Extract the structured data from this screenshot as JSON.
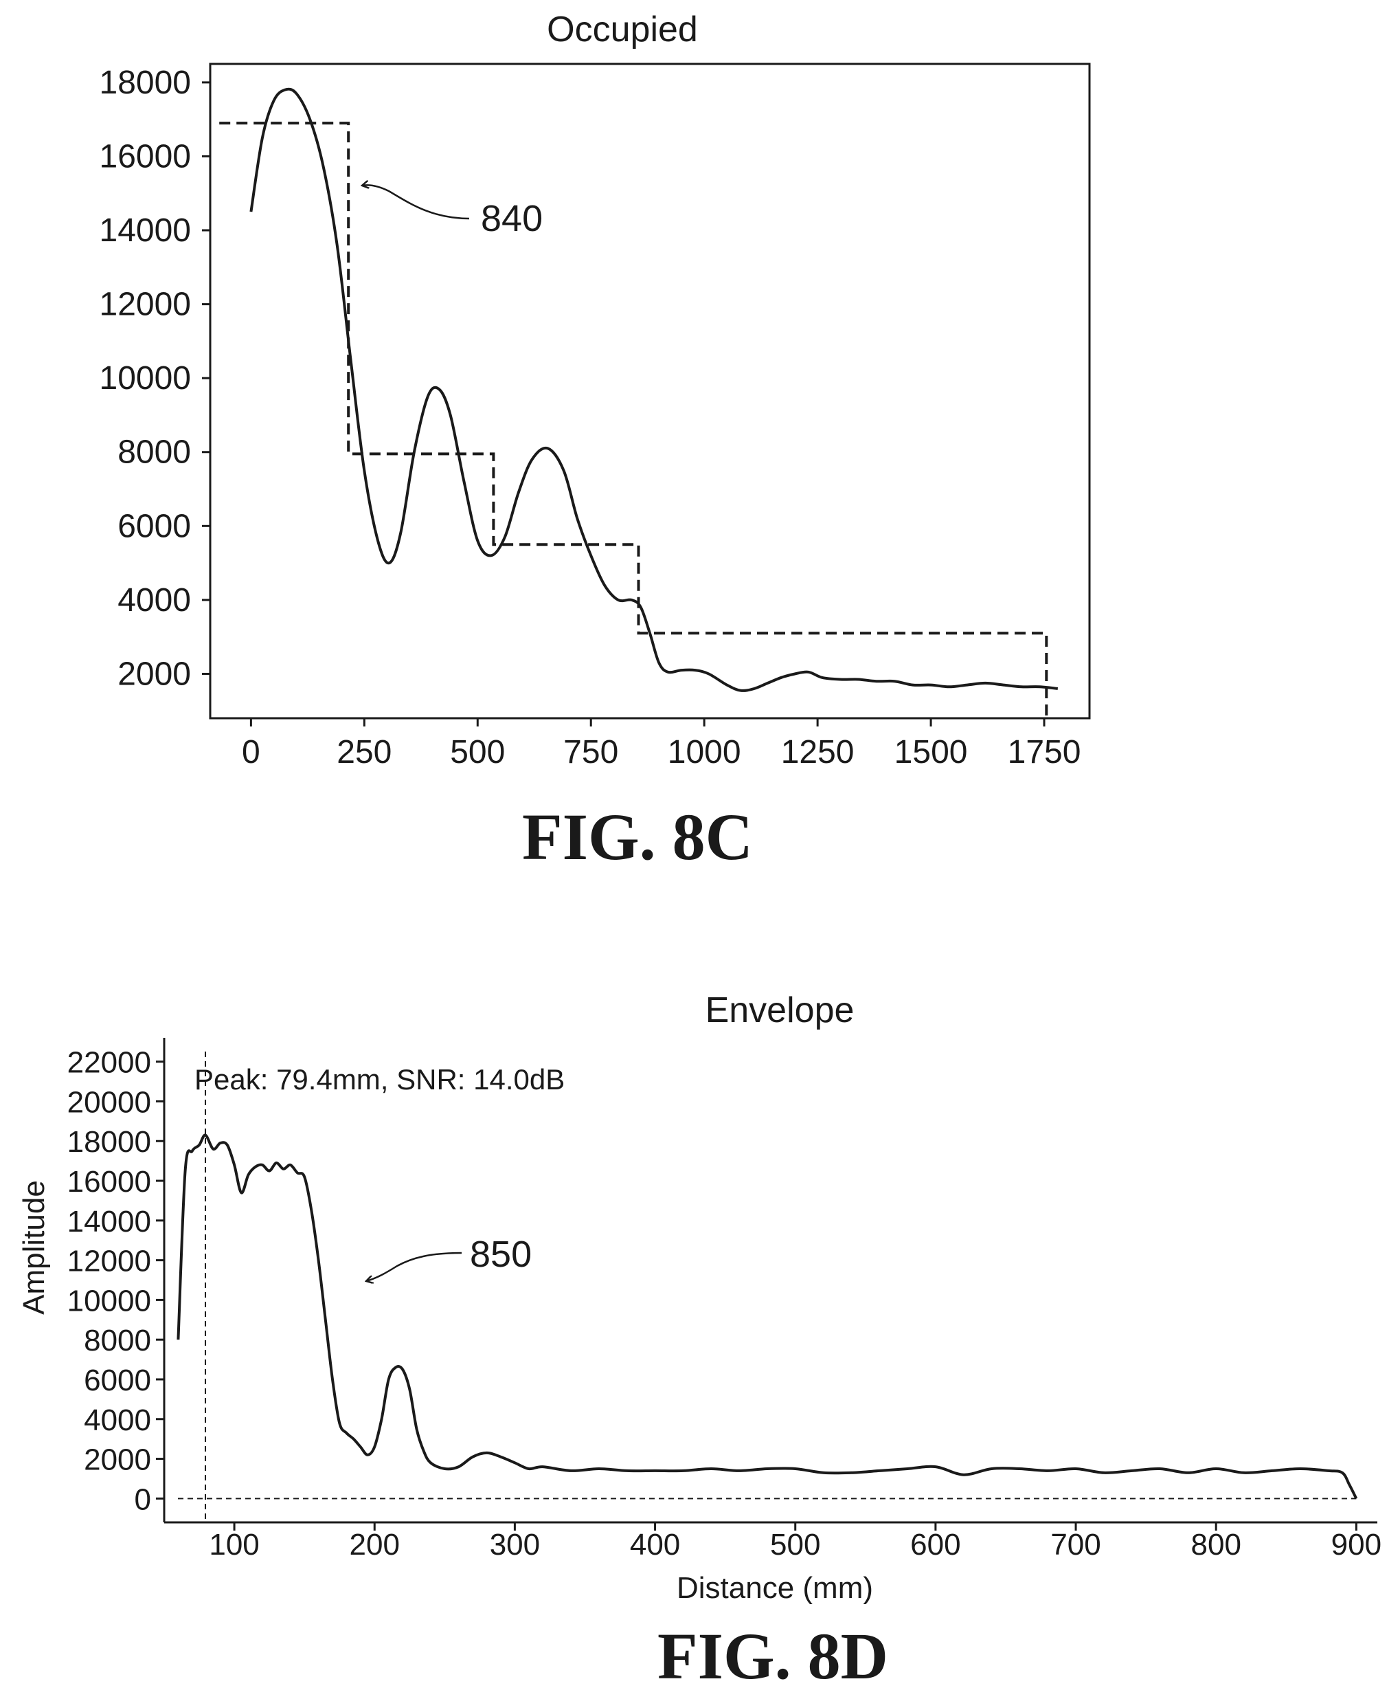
{
  "chart_data": [
    {
      "figure_label": "FIG. 8C",
      "type": "line",
      "title": "Occupied",
      "xlabel": "",
      "ylabel": "",
      "xlim": [
        -90,
        1850
      ],
      "ylim": [
        800,
        18500
      ],
      "x_ticks": [
        0,
        250,
        500,
        750,
        1000,
        1250,
        1500,
        1750
      ],
      "x_tick_labels": [
        "0",
        "250",
        "500",
        "750",
        "1000",
        "1250",
        "1500",
        "1750"
      ],
      "y_ticks": [
        2000,
        4000,
        6000,
        8000,
        10000,
        12000,
        14000,
        16000,
        18000
      ],
      "y_tick_labels": [
        "2000",
        "4000",
        "6000",
        "8000",
        "10000",
        "12000",
        "14000",
        "16000",
        "18000"
      ],
      "grid": false,
      "annotation": "840",
      "series": [
        {
          "style": "solid",
          "x": [
            0,
            25,
            50,
            75,
            100,
            130,
            160,
            190,
            220,
            250,
            280,
            305,
            330,
            360,
            390,
            415,
            440,
            470,
            500,
            530,
            560,
            590,
            620,
            655,
            690,
            720,
            750,
            780,
            810,
            840,
            860,
            880,
            900,
            920,
            950,
            980,
            1010,
            1050,
            1080,
            1110,
            1140,
            1170,
            1200,
            1230,
            1260,
            1300,
            1340,
            1380,
            1420,
            1460,
            1500,
            1540,
            1580,
            1620,
            1660,
            1700,
            1740,
            1780
          ],
          "y": [
            14500,
            16500,
            17500,
            17800,
            17700,
            17000,
            15700,
            13600,
            10500,
            7500,
            5600,
            5000,
            5800,
            8000,
            9500,
            9700,
            9000,
            7200,
            5600,
            5200,
            5700,
            6900,
            7800,
            8100,
            7500,
            6200,
            5200,
            4400,
            4000,
            4000,
            3800,
            3100,
            2300,
            2050,
            2100,
            2100,
            2000,
            1700,
            1550,
            1600,
            1750,
            1900,
            2000,
            2050,
            1900,
            1850,
            1850,
            1800,
            1800,
            1700,
            1700,
            1650,
            1700,
            1750,
            1700,
            1650,
            1650,
            1600
          ]
        },
        {
          "style": "dashed-step",
          "x": [
            -70,
            215,
            215,
            535,
            535,
            855,
            855,
            1755,
            1755
          ],
          "y": [
            16900,
            16900,
            7950,
            7950,
            5500,
            5500,
            3100,
            3100,
            800
          ]
        }
      ]
    },
    {
      "figure_label": "FIG. 8D",
      "type": "line",
      "title": "Envelope",
      "xlabel": "Distance (mm)",
      "ylabel": "Amplitude",
      "xlim": [
        50,
        915
      ],
      "ylim": [
        -1200,
        23200
      ],
      "x_ticks": [
        100,
        200,
        300,
        400,
        500,
        600,
        700,
        800,
        900
      ],
      "x_tick_labels": [
        "100",
        "200",
        "300",
        "400",
        "500",
        "600",
        "700",
        "800",
        "900"
      ],
      "y_ticks": [
        0,
        2000,
        4000,
        6000,
        8000,
        10000,
        12000,
        14000,
        16000,
        18000,
        20000,
        22000
      ],
      "y_tick_labels": [
        "0",
        "2000",
        "4000",
        "6000",
        "8000",
        "10000",
        "12000",
        "14000",
        "16000",
        "18000",
        "20000",
        "22000"
      ],
      "grid": false,
      "peak_text": "Peak: 79.4mm, SNR: 14.0dB",
      "peak_x": 79.4,
      "annotation": "850",
      "series": [
        {
          "style": "solid",
          "x": [
            60,
            65,
            70,
            75,
            79.4,
            85,
            90,
            95,
            100,
            105,
            110,
            115,
            120,
            125,
            130,
            135,
            140,
            145,
            150,
            155,
            160,
            165,
            170,
            175,
            180,
            185,
            190,
            195,
            200,
            205,
            210,
            215,
            220,
            225,
            230,
            235,
            240,
            250,
            260,
            270,
            280,
            290,
            300,
            310,
            320,
            340,
            360,
            380,
            400,
            420,
            440,
            460,
            480,
            500,
            520,
            540,
            560,
            580,
            600,
            620,
            640,
            660,
            680,
            700,
            720,
            740,
            760,
            780,
            800,
            820,
            840,
            860,
            880,
            890,
            895,
            900
          ],
          "y": [
            8000,
            16500,
            17500,
            17800,
            18300,
            17600,
            17900,
            17800,
            16800,
            15400,
            16300,
            16700,
            16800,
            16500,
            16900,
            16600,
            16800,
            16400,
            16200,
            14500,
            12000,
            9000,
            6000,
            3800,
            3300,
            3000,
            2600,
            2200,
            2600,
            4000,
            6000,
            6600,
            6500,
            5500,
            3500,
            2400,
            1800,
            1500,
            1600,
            2100,
            2300,
            2100,
            1800,
            1500,
            1600,
            1400,
            1500,
            1400,
            1400,
            1400,
            1500,
            1400,
            1500,
            1500,
            1300,
            1300,
            1400,
            1500,
            1600,
            1200,
            1500,
            1500,
            1400,
            1500,
            1300,
            1400,
            1500,
            1300,
            1500,
            1300,
            1400,
            1500,
            1400,
            1300,
            700,
            0
          ]
        }
      ]
    }
  ]
}
